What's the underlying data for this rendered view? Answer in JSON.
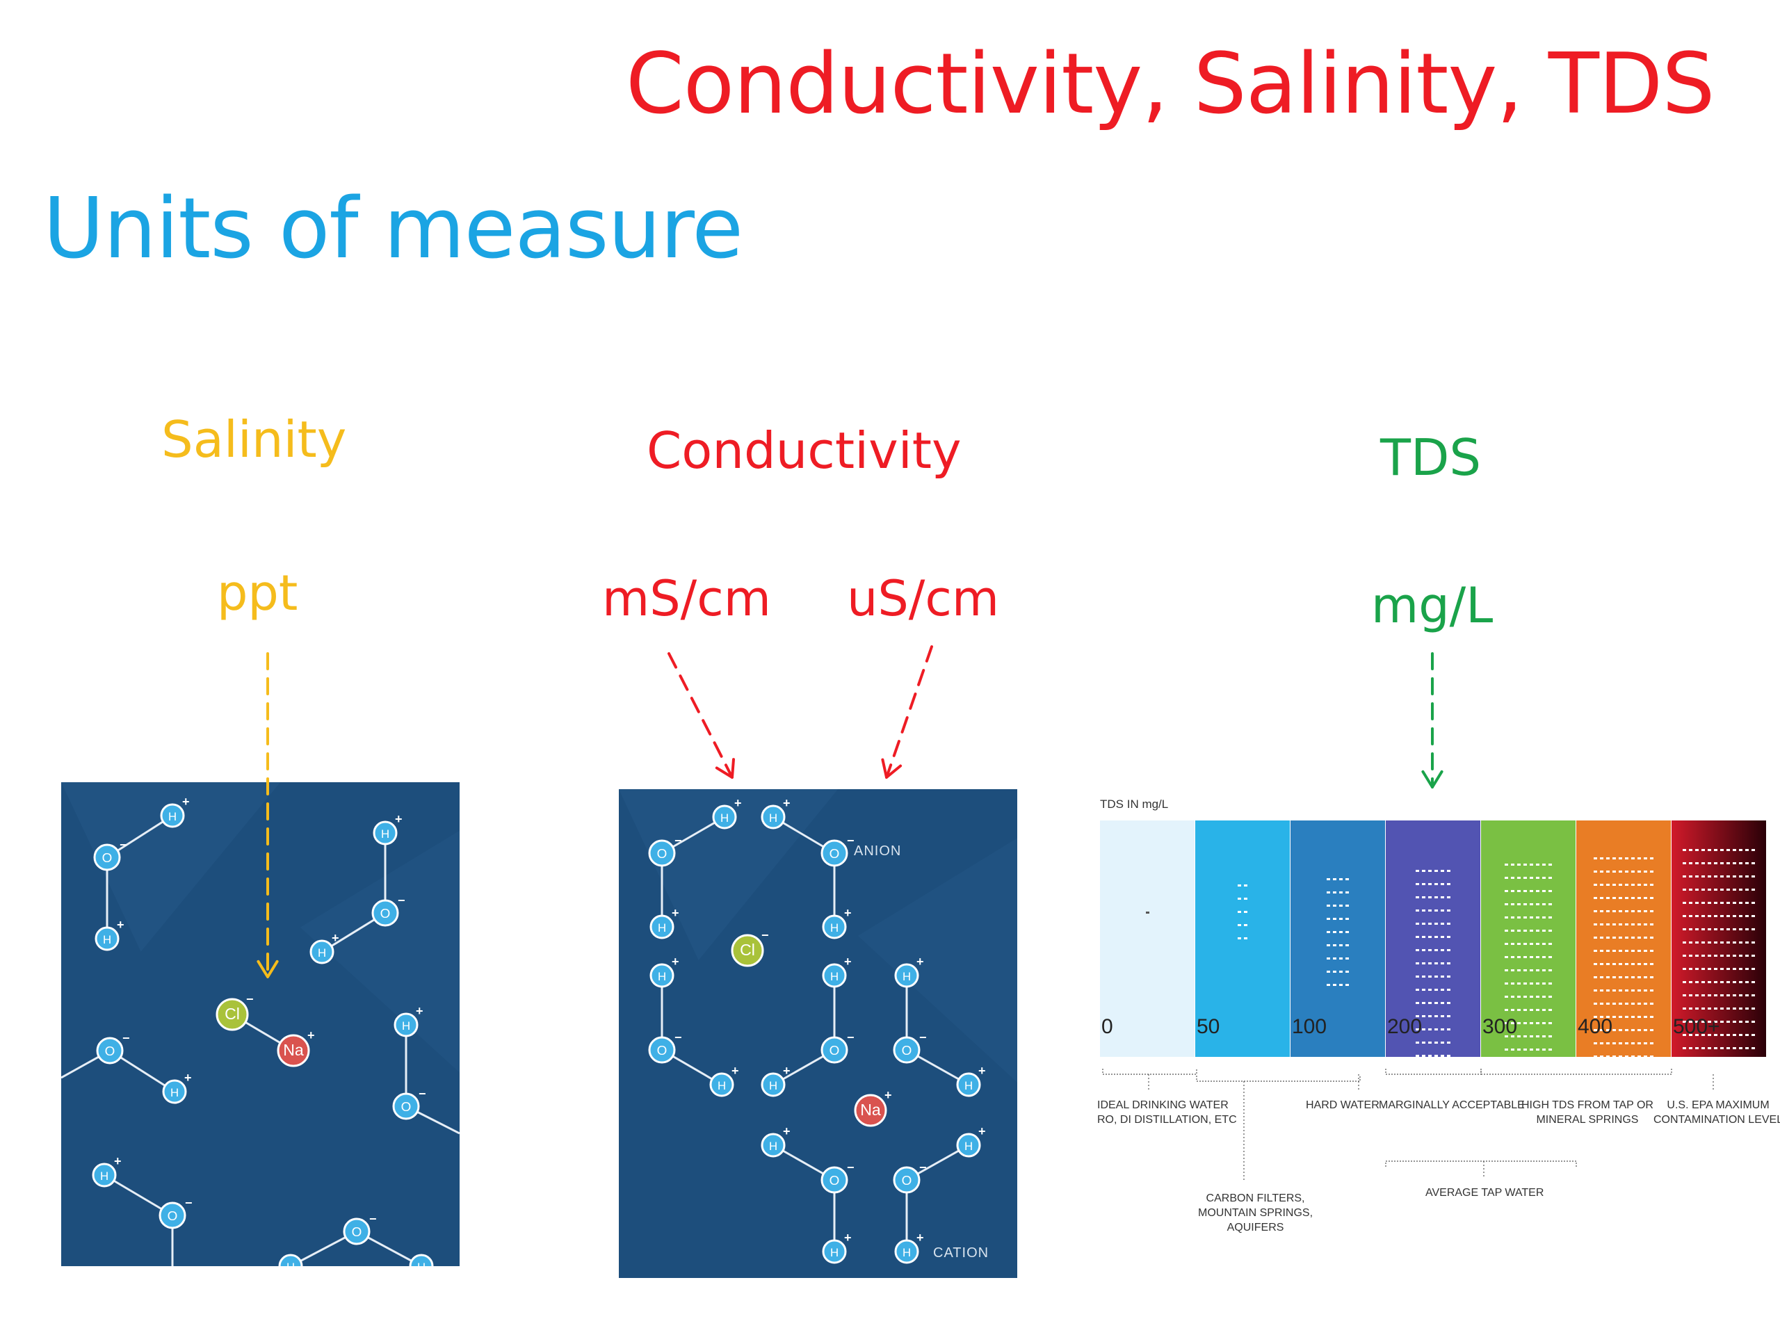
{
  "title": "Conductivity, Salinity, TDS",
  "subtitle": "Units of measure",
  "sections": {
    "salinity": {
      "heading": "Salinity",
      "unit": "ppt"
    },
    "conductivity": {
      "heading": "Conductivity",
      "unit_1": "mS/cm",
      "unit_2": "uS/cm"
    },
    "tds": {
      "heading": "TDS",
      "unit": "mg/L"
    }
  },
  "colors": {
    "title": "#ee1c24",
    "subtitle": "#1ba4e3",
    "salinity": "#f5bc1c",
    "conductivity": "#ee1c24",
    "tds": "#1aa34a",
    "water_bg": "#1d4e7c"
  },
  "molecules": {
    "hydrogen": "H",
    "oxygen": "O",
    "chloride": "Cl",
    "sodium": "Na",
    "plus": "+",
    "minus": "−",
    "anion_label": "ANION",
    "cation_label": "CATION"
  },
  "tds_chart": {
    "heading": "TDS IN mg/L",
    "ticks": [
      "0",
      "50",
      "100",
      "200",
      "300",
      "400",
      "500+"
    ],
    "band_colors": [
      "#e3f3fc",
      "#29b3e8",
      "#2a7fbf",
      "#5254b2",
      "#7ac043",
      "#e97d25",
      "#d11a2a"
    ],
    "band_density": [
      0.02,
      0.15,
      0.3,
      0.5,
      0.65,
      0.8,
      1.0
    ],
    "annotations": {
      "ideal": "IDEAL DRINKING WATER\nRO, DI DISTILLATION, ETC",
      "carbon": "CARBON FILTERS,\nMOUNTAIN SPRINGS,\nAQUIFERS",
      "hard": "HARD WATER",
      "marginal": "MARGINALLY ACCEPTABLE",
      "average": "AVERAGE TAP WATER",
      "high": "HIGH TDS FROM TAP OR\nMINERAL SPRINGS",
      "epa": "U.S. EPA MAXIMUM\nCONTAMINATION LEVEL"
    }
  }
}
